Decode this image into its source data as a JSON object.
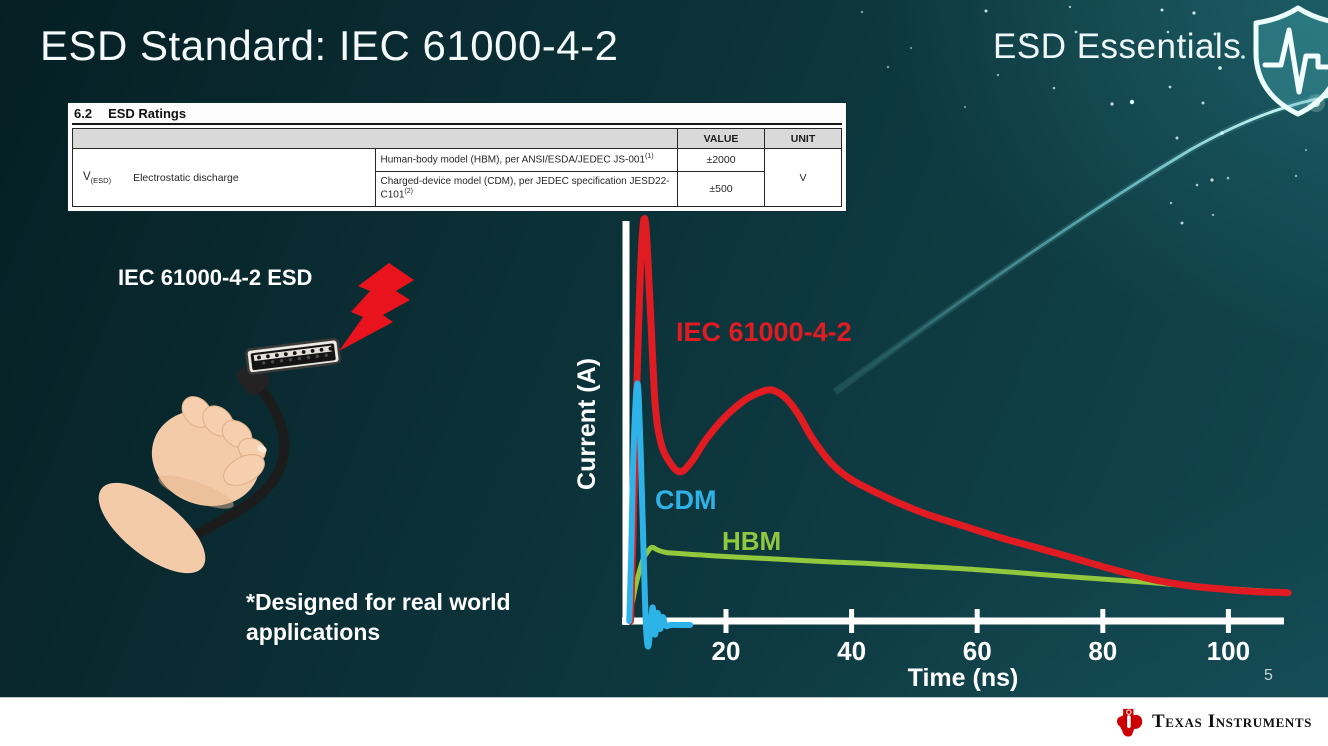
{
  "slide": {
    "title": "ESD Standard: IEC 61000-4-2",
    "series_brand": "ESD Essentials",
    "page_number": "5",
    "footer_brand": "Texas Instruments"
  },
  "ratings_table": {
    "section_number": "6.2",
    "section_title": "ESD Ratings",
    "headers": {
      "value": "VALUE",
      "unit": "UNIT"
    },
    "param_symbol": "V",
    "param_symbol_sub": "(ESD)",
    "param_name": "Electrostatic discharge",
    "rows": [
      {
        "description": "Human-body model (HBM), per ANSI/ESDA/JEDEC JS-001",
        "description_sup": "(1)",
        "value": "±2000"
      },
      {
        "description_line1": "Charged-device model (CDM), per JEDEC specification JESD22-",
        "description_line2": "C101",
        "description_sup": "(2)",
        "value": "±500"
      }
    ],
    "unit": "V"
  },
  "illustration": {
    "caption": "IEC 61000-4-2 ESD",
    "footnote_line1": "*Designed for real world",
    "footnote_line2": "applications"
  },
  "chart_data": {
    "type": "line",
    "title": "",
    "xlabel": "Time (ns)",
    "ylabel": "Current (A)",
    "x_ticks": [
      20,
      40,
      60,
      80,
      100
    ],
    "x_range_ns": [
      0,
      110
    ],
    "y_axis_note": "relative current, unlabeled scale (IEC 61000-4-2 first peak = 1.0)",
    "grid": false,
    "legend_position": "inline labels next to curves",
    "series": [
      {
        "name": "IEC 61000-4-2",
        "color": "#e11b22",
        "points": [
          [
            4.8,
            0
          ],
          [
            5.3,
            0.28
          ],
          [
            5.9,
            0.65
          ],
          [
            6.6,
            0.95
          ],
          [
            7.2,
            1.0
          ],
          [
            7.9,
            0.8
          ],
          [
            8.7,
            0.55
          ],
          [
            9.6,
            0.45
          ],
          [
            11.0,
            0.4
          ],
          [
            12.7,
            0.375
          ],
          [
            14.5,
            0.4
          ],
          [
            17,
            0.46
          ],
          [
            20,
            0.515
          ],
          [
            23,
            0.555
          ],
          [
            25.5,
            0.575
          ],
          [
            27.4,
            0.58
          ],
          [
            29.5,
            0.56
          ],
          [
            31.5,
            0.52
          ],
          [
            33.5,
            0.465
          ],
          [
            35.5,
            0.42
          ],
          [
            37.5,
            0.385
          ],
          [
            40,
            0.355
          ],
          [
            43,
            0.33
          ],
          [
            47,
            0.3
          ],
          [
            52,
            0.268
          ],
          [
            58,
            0.238
          ],
          [
            64,
            0.208
          ],
          [
            70,
            0.182
          ],
          [
            76,
            0.155
          ],
          [
            82,
            0.128
          ],
          [
            88,
            0.104
          ],
          [
            94,
            0.088
          ],
          [
            100,
            0.079
          ],
          [
            104,
            0.074
          ],
          [
            107,
            0.072
          ],
          [
            109.5,
            0.071
          ]
        ]
      },
      {
        "name": "CDM",
        "color": "#2eb3e9",
        "points": [
          [
            4.6,
            0
          ],
          [
            4.9,
            0.17
          ],
          [
            5.3,
            0.44
          ],
          [
            5.9,
            0.597
          ],
          [
            6.4,
            0.43
          ],
          [
            6.9,
            0.16
          ],
          [
            7.25,
            -0.01
          ],
          [
            7.6,
            -0.064
          ],
          [
            8.0,
            -0.012
          ],
          [
            8.35,
            0.034
          ],
          [
            8.7,
            -0.034
          ],
          [
            9.1,
            0.02
          ],
          [
            9.5,
            -0.02
          ],
          [
            9.9,
            0.01
          ],
          [
            10.4,
            -0.012
          ],
          [
            11.2,
            -0.01
          ],
          [
            12.6,
            -0.01
          ],
          [
            14.3,
            -0.01
          ]
        ]
      },
      {
        "name": "HBM",
        "color": "#92c83e",
        "points": [
          [
            4.5,
            0
          ],
          [
            5.0,
            0.04
          ],
          [
            5.8,
            0.1
          ],
          [
            6.8,
            0.155
          ],
          [
            7.8,
            0.18
          ],
          [
            8.3,
            0.185
          ],
          [
            9.2,
            0.178
          ],
          [
            10.5,
            0.172
          ],
          [
            13,
            0.169
          ],
          [
            16,
            0.166
          ],
          [
            20,
            0.162
          ],
          [
            25,
            0.158
          ],
          [
            30,
            0.154
          ],
          [
            36,
            0.149
          ],
          [
            42,
            0.145
          ],
          [
            50,
            0.138
          ],
          [
            58,
            0.131
          ],
          [
            66,
            0.122
          ],
          [
            74,
            0.112
          ],
          [
            82,
            0.103
          ],
          [
            88,
            0.096
          ],
          [
            94,
            0.088
          ],
          [
            100,
            0.081
          ],
          [
            104,
            0.077
          ],
          [
            107,
            0.074
          ],
          [
            109,
            0.072
          ]
        ]
      }
    ]
  },
  "colors": {
    "background_teal": "#0c343b",
    "iec_red": "#e11b22",
    "cdm_blue": "#2eb3e9",
    "hbm_green": "#92c83e",
    "bolt_red": "#e8131d",
    "ti_red": "#cc0000",
    "streak_cyan": "#7ee7ec"
  }
}
